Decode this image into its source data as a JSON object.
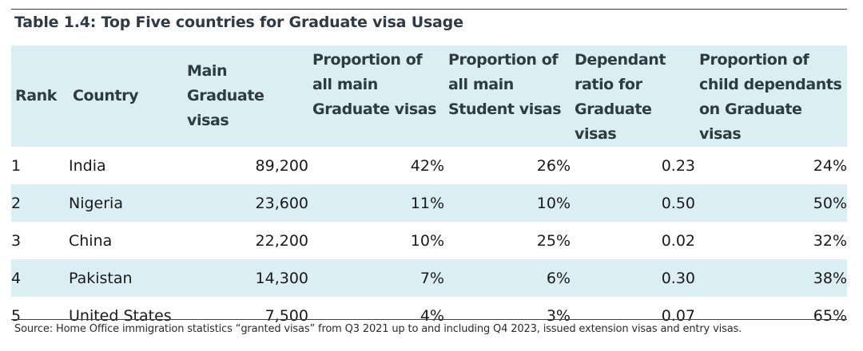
{
  "table": {
    "caption": "Table 1.4: Top Five countries for Graduate visa Usage",
    "columns": [
      {
        "label": "Rank"
      },
      {
        "label": "Country"
      },
      {
        "label": "Main Graduate visas"
      },
      {
        "label": "Proportion of all main Graduate visas"
      },
      {
        "label": "Proportion of all main Student visas"
      },
      {
        "label": "Dependant ratio for Graduate visas"
      },
      {
        "label": "Proportion of child dependants on Graduate visas"
      }
    ],
    "rows": [
      {
        "rank": "1",
        "country": "India",
        "main_graduate_visas": "89,200",
        "prop_graduate": "42%",
        "prop_student": "26%",
        "dependant_ratio": "0.23",
        "prop_child": "24%"
      },
      {
        "rank": "2",
        "country": "Nigeria",
        "main_graduate_visas": "23,600",
        "prop_graduate": "11%",
        "prop_student": "10%",
        "dependant_ratio": "0.50",
        "prop_child": "50%"
      },
      {
        "rank": "3",
        "country": "China",
        "main_graduate_visas": "22,200",
        "prop_graduate": "10%",
        "prop_student": "25%",
        "dependant_ratio": "0.02",
        "prop_child": "32%"
      },
      {
        "rank": "4",
        "country": "Pakistan",
        "main_graduate_visas": "14,300",
        "prop_graduate": "7%",
        "prop_student": "6%",
        "dependant_ratio": "0.30",
        "prop_child": "38%"
      },
      {
        "rank": "5",
        "country": "United States",
        "main_graduate_visas": "7,500",
        "prop_graduate": "4%",
        "prop_student": "3%",
        "dependant_ratio": "0.07",
        "prop_child": "65%"
      }
    ],
    "source": "Source: Home Office immigration statistics “granted visas” from Q3 2021 up to and including Q4 2023, issued extension visas and entry visas."
  },
  "colors": {
    "header_band": "#dbeef3",
    "caption_text": "#2e3a44",
    "rule": "#404040"
  }
}
